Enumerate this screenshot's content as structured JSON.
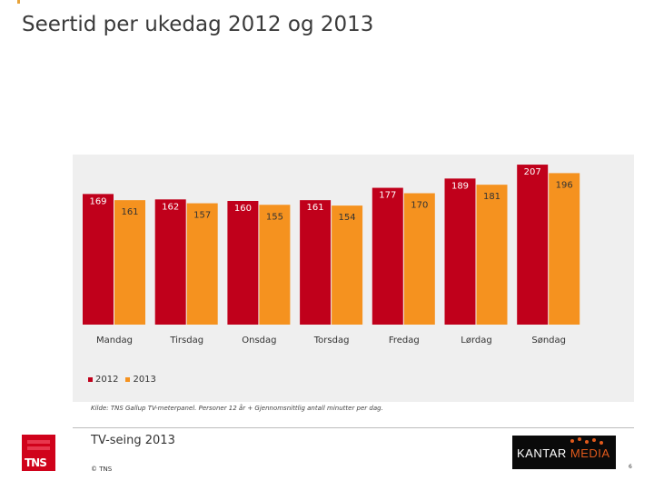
{
  "title": "Seertid per ukedag 2012 og 2013",
  "chart_data": {
    "type": "bar",
    "categories": [
      "Mandag",
      "Tirsdag",
      "Onsdag",
      "Torsdag",
      "Fredag",
      "Lørdag",
      "Søndag"
    ],
    "series": [
      {
        "name": "2012",
        "color": "#c0001b",
        "values": [
          169,
          162,
          160,
          161,
          177,
          189,
          207
        ]
      },
      {
        "name": "2013",
        "color": "#f5921f",
        "values": [
          161,
          157,
          155,
          154,
          170,
          181,
          196
        ]
      }
    ],
    "ylim": [
      0,
      210
    ],
    "legend_position": "bottom-left",
    "grid": false
  },
  "legend": {
    "items": [
      {
        "label": "2012",
        "color": "#c0001b"
      },
      {
        "label": "2013",
        "color": "#f5921f"
      }
    ]
  },
  "source_note": "Kilde: TNS Gallup TV-meterpanel. Personer 12 år + Gjennomsnittlig antall minutter per dag.",
  "footer": {
    "subtitle": "TV-seing 2013",
    "copyright": "© TNS",
    "page_number": "6",
    "tns_logo_text": "TNS",
    "kantar_logo_text_a": "KANTAR ",
    "kantar_logo_text_b": "MEDIA"
  }
}
